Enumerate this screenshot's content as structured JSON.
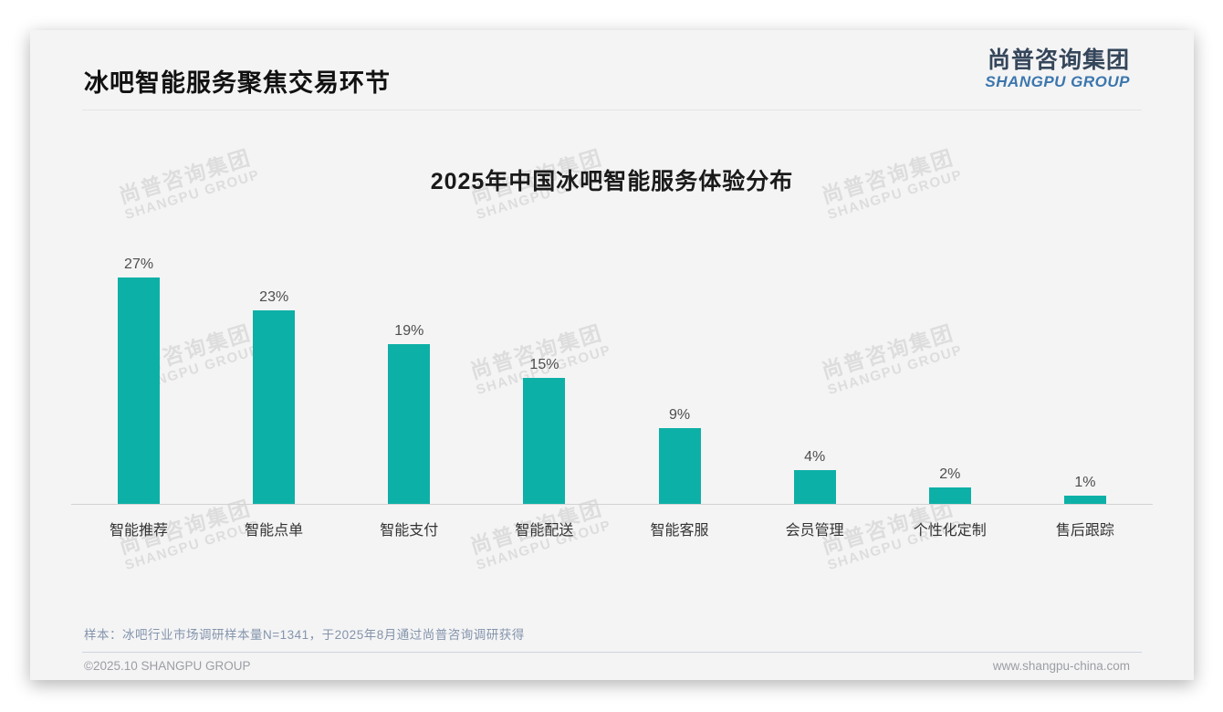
{
  "page": {
    "title": "冰吧智能服务聚焦交易环节",
    "logo": {
      "cn": "尚普咨询集团",
      "en": "SHANGPU GROUP"
    },
    "watermark": {
      "cn": "尚普咨询集团",
      "en": "SHANGPU GROUP"
    },
    "footnote": "样本：冰吧行业市场调研样本量N=1341，于2025年8月通过尚普咨询调研获得",
    "footer_left": "©2025.10 SHANGPU GROUP",
    "footer_right": "www.shangpu-china.com"
  },
  "colors": {
    "bar": "#0db0a6",
    "logo_cn": "#35465a",
    "logo_en": "#3b76ad",
    "accent_background": "#f4f4f5"
  },
  "chart_data": {
    "type": "bar",
    "title": "2025年中国冰吧智能服务体验分布",
    "categories": [
      "智能推荐",
      "智能点单",
      "智能支付",
      "智能配送",
      "智能客服",
      "会员管理",
      "个性化定制",
      "售后跟踪"
    ],
    "values": [
      27,
      23,
      19,
      15,
      9,
      4,
      2,
      1
    ],
    "value_labels": [
      "27%",
      "23%",
      "19%",
      "15%",
      "9%",
      "4%",
      "2%",
      "1%"
    ],
    "unit": "%",
    "ylim": [
      0,
      30
    ],
    "grid": false,
    "legend": false,
    "bar_color": "#0db0a6",
    "xlabel": "",
    "ylabel": ""
  }
}
